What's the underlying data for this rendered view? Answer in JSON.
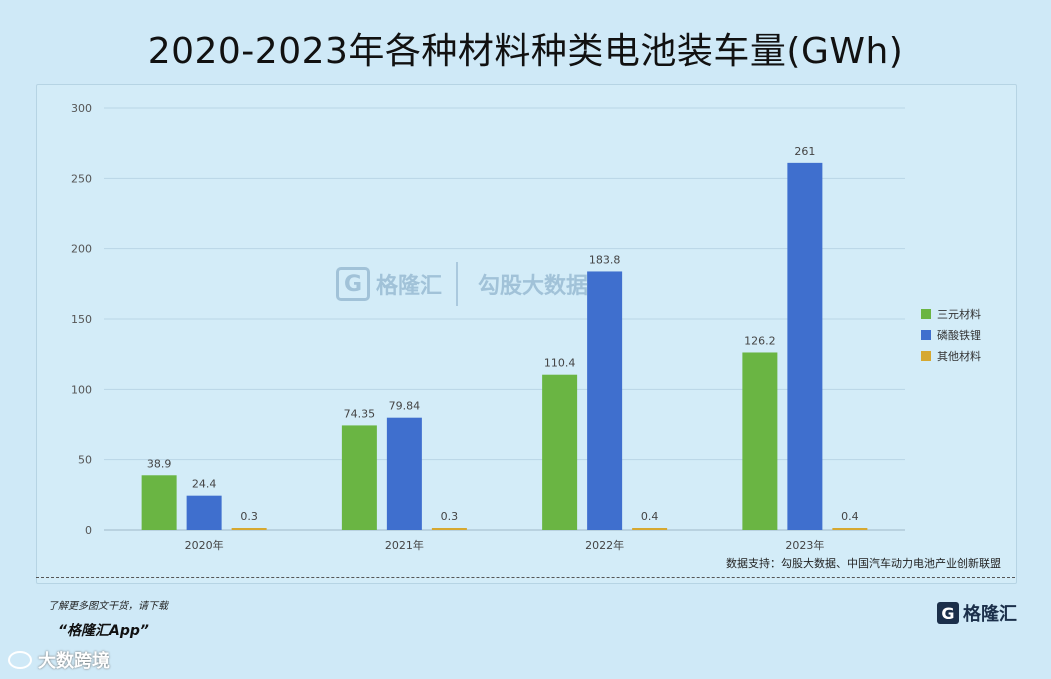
{
  "title": "2020-2023年各种材料种类电池装车量(GWh)",
  "chart_data": {
    "type": "bar",
    "categories": [
      "2020年",
      "2021年",
      "2022年",
      "2023年"
    ],
    "series": [
      {
        "name": "三元材料",
        "color": "#6ab543",
        "values": [
          38.9,
          74.35,
          110.4,
          126.2
        ],
        "labels": [
          "38.9",
          "74.35",
          "110.4",
          "126.2"
        ]
      },
      {
        "name": "磷酸铁锂",
        "color": "#3f6fce",
        "values": [
          24.4,
          79.84,
          183.8,
          261
        ],
        "labels": [
          "24.4",
          "79.84",
          "183.8",
          "261"
        ]
      },
      {
        "name": "其他材料",
        "color": "#d6a830",
        "values": [
          0.3,
          0.3,
          0.4,
          0.4
        ],
        "labels": [
          "0.3",
          "0.3",
          "0.4",
          "0.4"
        ]
      }
    ],
    "ylim": [
      0,
      300
    ],
    "yticks": [
      0,
      50,
      100,
      150,
      200,
      250,
      300
    ],
    "grid": true,
    "legend": "right"
  },
  "source": "数据支持：勾股大数据、中国汽车动力电池产业创新联盟",
  "watermark": {
    "brand": "格隆汇",
    "brand_logo": "G",
    "partner": "勾股大数据"
  },
  "promo": {
    "line1": "了解更多图文干货，请下载",
    "line2": "“格隆汇App”"
  },
  "corner_brand": {
    "logo": "G",
    "name": "格隆汇"
  },
  "weibo": {
    "icon": "weibo-icon",
    "name": "大数跨境"
  }
}
